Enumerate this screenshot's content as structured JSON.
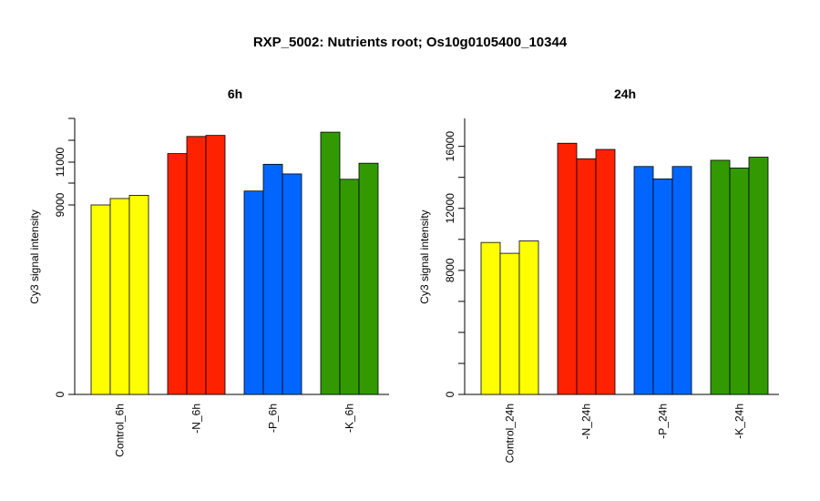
{
  "title": "RXP_5002: Nutrients root; Os10g0105400_10344",
  "chart_data": [
    {
      "type": "bar",
      "title": "6h",
      "ylabel": "Cy3 signal intensity",
      "ylim": [
        0,
        12600
      ],
      "y_break_display": {
        "tick_values": [
          0,
          9000,
          11000
        ],
        "note": "axis is broken/compressed"
      },
      "categories": [
        "Control_6h",
        "-N_6h",
        "-P_6h",
        "-K_6h"
      ],
      "bars_per_category": 3,
      "colors": [
        "#ffff00",
        "#ff2200",
        "#0066ff",
        "#339900"
      ],
      "values": [
        [
          9000,
          9300,
          9450
        ],
        [
          11400,
          12200,
          12250
        ],
        [
          9650,
          10900,
          10450
        ],
        [
          12400,
          10200,
          10950
        ]
      ]
    },
    {
      "type": "bar",
      "title": "24h",
      "ylabel": "Cy3 signal intensity",
      "ylim": [
        0,
        17800
      ],
      "y_ticks": [
        0,
        8000,
        12000,
        16000
      ],
      "categories": [
        "Control_24h",
        "-N_24h",
        "-P_24h",
        "-K_24h"
      ],
      "bars_per_category": 3,
      "colors": [
        "#ffff00",
        "#ff2200",
        "#0066ff",
        "#339900"
      ],
      "values": [
        [
          9800,
          9100,
          9900
        ],
        [
          16200,
          15200,
          15800
        ],
        [
          14700,
          13900,
          14700
        ],
        [
          15100,
          14600,
          15300
        ]
      ]
    }
  ]
}
